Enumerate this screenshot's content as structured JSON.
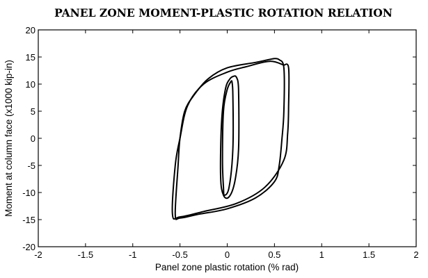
{
  "chart_data": {
    "type": "line",
    "title": "PANEL ZONE MOMENT-PLASTIC ROTATION RELATION",
    "xlabel": "Panel zone plastic rotation (% rad)",
    "ylabel": "Moment at column face (x1000 kip-in)",
    "xlim": [
      -2,
      2
    ],
    "ylim": [
      -20,
      20
    ],
    "xticks": [
      -2,
      -1.5,
      -1,
      -0.5,
      0,
      0.5,
      1,
      1.5,
      2
    ],
    "yticks": [
      -20,
      -15,
      -10,
      -5,
      0,
      5,
      10,
      15,
      20
    ],
    "xtick_labels": [
      "-2",
      "-1.5",
      "-1",
      "-0.5",
      "0",
      "0.5",
      "1",
      "1.5",
      "2"
    ],
    "ytick_labels": [
      "-20",
      "-15",
      "-10",
      "-5",
      "0",
      "5",
      "10",
      "15",
      "20"
    ],
    "grid": false,
    "series": [
      {
        "x": [
          0.55,
          0.5,
          0.3,
          0.0,
          -0.2,
          -0.35,
          -0.45,
          -0.5,
          -0.52,
          -0.55,
          -0.5,
          -0.3,
          0.0,
          0.3,
          0.5,
          0.55,
          0.58,
          0.6,
          0.6,
          0.55
        ],
        "y": [
          14.5,
          14.7,
          14.0,
          13.0,
          11.0,
          8.0,
          5.0,
          0.0,
          -5.0,
          -14.0,
          -14.7,
          -14.0,
          -13.0,
          -11.0,
          -8.0,
          -5.0,
          0.0,
          5.0,
          13.0,
          14.5
        ]
      },
      {
        "x": [
          0.6,
          0.45,
          0.2,
          0.0,
          -0.25,
          -0.42,
          -0.5,
          -0.55,
          -0.58,
          -0.5,
          -0.25,
          0.1,
          0.4,
          0.6,
          0.64,
          0.65,
          0.65,
          0.6
        ],
        "y": [
          13.5,
          14.2,
          13.2,
          12.2,
          10.0,
          6.0,
          0.0,
          -5.0,
          -14.0,
          -14.5,
          -13.5,
          -12.0,
          -9.0,
          -4.0,
          1.0,
          6.0,
          13.0,
          13.5
        ]
      },
      {
        "x": [
          0.05,
          0.06,
          0.06,
          0.02,
          -0.03,
          -0.04,
          -0.05,
          -0.04,
          0.0,
          0.04,
          0.05
        ],
        "y": [
          10.5,
          8.0,
          -2.0,
          -9.0,
          -10.5,
          -9.0,
          -4.0,
          5.0,
          9.0,
          10.5,
          10.5
        ]
      },
      {
        "x": [
          0.1,
          0.12,
          0.12,
          0.08,
          0.02,
          -0.04,
          -0.07,
          -0.06,
          -0.02,
          0.03,
          0.08,
          0.1
        ],
        "y": [
          11.2,
          9.0,
          -2.0,
          -8.0,
          -10.8,
          -10.5,
          -7.0,
          3.0,
          9.0,
          11.0,
          11.5,
          11.2
        ]
      }
    ]
  }
}
